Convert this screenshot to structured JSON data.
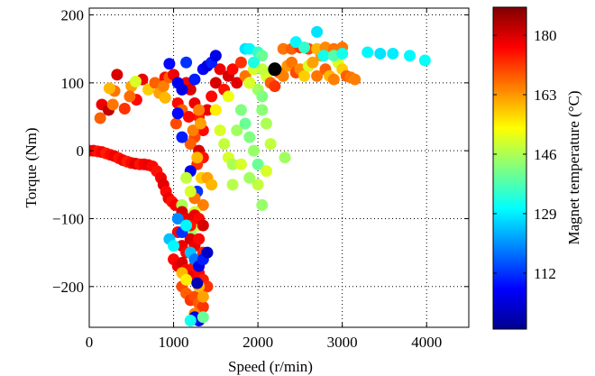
{
  "chart_data": {
    "type": "scatter",
    "xlabel": "Speed (r/min)",
    "ylabel": "Torque (Nm)",
    "xlim": [
      0,
      4500
    ],
    "ylim": [
      -260,
      210
    ],
    "xticks": [
      0,
      1000,
      2000,
      3000,
      4000
    ],
    "yticks": [
      -200,
      -100,
      0,
      100,
      200
    ],
    "grid": "dotted",
    "colorbar": {
      "label": "Magnet temperature (°C)",
      "range": [
        96,
        188
      ],
      "ticks": [
        112,
        129,
        146,
        163,
        180
      ],
      "colormap": "jet",
      "colors": [
        "#00008f",
        "#0000ff",
        "#0080ff",
        "#00ffff",
        "#80ff80",
        "#ffff00",
        "#ff8000",
        "#ff0000",
        "#800000"
      ]
    },
    "highlight_point": {
      "x": 2200,
      "y": 120,
      "color": "#000000"
    },
    "series": [
      {
        "points": [
          [
            0,
            0,
            176
          ],
          [
            50,
            0,
            178
          ],
          [
            100,
            -1,
            175
          ],
          [
            150,
            -2,
            177
          ],
          [
            200,
            -4,
            174
          ],
          [
            250,
            -6,
            176
          ],
          [
            300,
            -8,
            178
          ],
          [
            350,
            -11,
            175
          ],
          [
            400,
            -14,
            177
          ],
          [
            450,
            -16,
            174
          ],
          [
            500,
            -18,
            176
          ],
          [
            550,
            -19,
            179
          ],
          [
            600,
            -20,
            175
          ],
          [
            650,
            -20,
            177
          ],
          [
            700,
            -21,
            178
          ],
          [
            750,
            -23,
            176
          ],
          [
            800,
            -30,
            175
          ],
          [
            850,
            -40,
            177
          ],
          [
            880,
            -50,
            179
          ],
          [
            910,
            -60,
            176
          ],
          [
            940,
            -70,
            178
          ],
          [
            980,
            -75,
            175
          ],
          [
            1020,
            -80,
            177
          ],
          [
            330,
            112,
            180
          ],
          [
            300,
            88,
            166
          ],
          [
            240,
            92,
            160
          ],
          [
            150,
            68,
            178
          ],
          [
            130,
            48,
            168
          ],
          [
            230,
            60,
            182
          ],
          [
            280,
            68,
            166
          ],
          [
            420,
            62,
            172
          ],
          [
            500,
            95,
            162
          ],
          [
            560,
            75,
            176
          ],
          [
            630,
            105,
            178
          ],
          [
            700,
            90,
            158
          ],
          [
            780,
            100,
            168
          ],
          [
            830,
            85,
            162
          ],
          [
            900,
            108,
            176
          ],
          [
            550,
            102,
            150
          ],
          [
            480,
            80,
            167
          ],
          [
            880,
            95,
            165
          ],
          [
            950,
            108,
            168
          ],
          [
            1000,
            112,
            178
          ],
          [
            1050,
            70,
            176
          ],
          [
            900,
            78,
            160
          ],
          [
            1030,
            40,
            170
          ],
          [
            1100,
            60,
            168
          ],
          [
            1150,
            100,
            177
          ],
          [
            1200,
            90,
            180
          ],
          [
            1250,
            70,
            178
          ],
          [
            1300,
            50,
            174
          ],
          [
            1350,
            30,
            176
          ],
          [
            1250,
            20,
            170
          ],
          [
            1200,
            10,
            168
          ],
          [
            1300,
            0,
            180
          ],
          [
            1350,
            -10,
            175
          ],
          [
            1280,
            -20,
            172
          ],
          [
            1230,
            30,
            165
          ],
          [
            1180,
            50,
            176
          ],
          [
            1400,
            60,
            178
          ],
          [
            1450,
            80,
            176
          ],
          [
            1500,
            100,
            180
          ],
          [
            1550,
            120,
            178
          ],
          [
            1600,
            90,
            175
          ],
          [
            1650,
            110,
            180
          ],
          [
            1700,
            120,
            176
          ],
          [
            1750,
            100,
            179
          ],
          [
            1800,
            130,
            172
          ],
          [
            1850,
            110,
            166
          ],
          [
            1900,
            100,
            160
          ],
          [
            1950,
            120,
            150
          ],
          [
            2000,
            90,
            145
          ],
          [
            2050,
            80,
            142
          ],
          [
            2100,
            110,
            150
          ],
          [
            2150,
            100,
            168
          ],
          [
            2200,
            95,
            172
          ],
          [
            2250,
            115,
            168
          ],
          [
            2300,
            110,
            165
          ],
          [
            2350,
            125,
            163
          ],
          [
            2400,
            130,
            166
          ],
          [
            2450,
            115,
            170
          ],
          [
            2500,
            120,
            164
          ],
          [
            2550,
            110,
            158
          ],
          [
            2600,
            125,
            150
          ],
          [
            2650,
            130,
            162
          ],
          [
            2700,
            110,
            166
          ],
          [
            2750,
            140,
            163
          ],
          [
            2800,
            120,
            168
          ],
          [
            2850,
            110,
            160
          ],
          [
            2900,
            105,
            165
          ],
          [
            2950,
            130,
            150
          ],
          [
            3000,
            120,
            158
          ],
          [
            3050,
            110,
            168
          ],
          [
            3100,
            108,
            166
          ],
          [
            3150,
            105,
            165
          ],
          [
            2300,
            150,
            166
          ],
          [
            2400,
            150,
            168
          ],
          [
            2500,
            152,
            172
          ],
          [
            2600,
            150,
            170
          ],
          [
            2700,
            150,
            160
          ],
          [
            2800,
            152,
            164
          ],
          [
            2900,
            150,
            166
          ],
          [
            3000,
            152,
            166
          ],
          [
            2450,
            160,
            130
          ],
          [
            2550,
            152,
            135
          ],
          [
            2700,
            175,
            128
          ],
          [
            2780,
            140,
            132
          ],
          [
            2900,
            140,
            138
          ],
          [
            3000,
            143,
            132
          ],
          [
            3300,
            145,
            130
          ],
          [
            3450,
            143,
            128
          ],
          [
            3600,
            143,
            129
          ],
          [
            3800,
            140,
            130
          ],
          [
            3980,
            133,
            131
          ],
          [
            1850,
            150,
            128
          ],
          [
            1900,
            150,
            130
          ],
          [
            2000,
            145,
            135
          ],
          [
            2050,
            140,
            140
          ],
          [
            1950,
            130,
            133
          ],
          [
            1350,
            120,
            108
          ],
          [
            1400,
            125,
            105
          ],
          [
            1450,
            130,
            110
          ],
          [
            1500,
            140,
            105
          ],
          [
            1250,
            105,
            110
          ],
          [
            1100,
            90,
            105
          ],
          [
            1050,
            55,
            108
          ],
          [
            1100,
            20,
            110
          ],
          [
            1200,
            -30,
            106
          ],
          [
            1280,
            -60,
            112
          ],
          [
            1150,
            130,
            112
          ],
          [
            950,
            128,
            108
          ],
          [
            1050,
            100,
            106
          ],
          [
            1300,
            60,
            165
          ],
          [
            1320,
            40,
            162
          ],
          [
            1280,
            -10,
            160
          ],
          [
            1330,
            -40,
            158
          ],
          [
            1250,
            -70,
            166
          ],
          [
            1400,
            -40,
            162
          ],
          [
            1450,
            -50,
            160
          ],
          [
            1350,
            -80,
            165
          ],
          [
            1500,
            60,
            155
          ],
          [
            1550,
            30,
            150
          ],
          [
            1600,
            10,
            148
          ],
          [
            1650,
            -10,
            150
          ],
          [
            1700,
            -20,
            146
          ],
          [
            1750,
            30,
            145
          ],
          [
            1800,
            60,
            142
          ],
          [
            1850,
            40,
            140
          ],
          [
            1900,
            20,
            142
          ],
          [
            1950,
            0,
            144
          ],
          [
            2000,
            -20,
            140
          ],
          [
            2050,
            60,
            143
          ],
          [
            2100,
            40,
            146
          ],
          [
            2150,
            10,
            148
          ],
          [
            2100,
            -30,
            150
          ],
          [
            2000,
            -50,
            148
          ],
          [
            1900,
            -40,
            145
          ],
          [
            1800,
            -20,
            150
          ],
          [
            1700,
            -50,
            147
          ],
          [
            1650,
            80,
            152
          ],
          [
            2320,
            -10,
            145
          ],
          [
            2050,
            -80,
            144
          ],
          [
            1900,
            100,
            150
          ],
          [
            2050,
            120,
            148
          ],
          [
            1150,
            -40,
            148
          ],
          [
            1200,
            -60,
            150
          ],
          [
            1100,
            -80,
            146
          ],
          [
            1250,
            -90,
            150
          ],
          [
            1300,
            -110,
            148
          ],
          [
            1200,
            -120,
            145
          ],
          [
            1100,
            -90,
            180
          ],
          [
            1150,
            -100,
            178
          ],
          [
            1200,
            -110,
            175
          ],
          [
            1250,
            -95,
            178
          ],
          [
            1300,
            -100,
            176
          ],
          [
            1350,
            -110,
            180
          ],
          [
            1050,
            -120,
            176
          ],
          [
            1100,
            -140,
            178
          ],
          [
            1150,
            -150,
            176
          ],
          [
            1200,
            -130,
            180
          ],
          [
            1250,
            -140,
            178
          ],
          [
            1300,
            -130,
            176
          ],
          [
            1350,
            -150,
            174
          ],
          [
            1000,
            -160,
            176
          ],
          [
            1050,
            -170,
            178
          ],
          [
            1100,
            -165,
            180
          ],
          [
            1150,
            -175,
            176
          ],
          [
            1200,
            -185,
            178
          ],
          [
            1250,
            -170,
            175
          ],
          [
            1300,
            -180,
            176
          ],
          [
            1350,
            -190,
            174
          ],
          [
            1400,
            -200,
            172
          ],
          [
            1100,
            -200,
            170
          ],
          [
            1150,
            -210,
            168
          ],
          [
            1200,
            -220,
            172
          ],
          [
            1250,
            -215,
            170
          ],
          [
            1300,
            -225,
            168
          ],
          [
            1350,
            -230,
            172
          ],
          [
            1100,
            -180,
            160
          ],
          [
            1150,
            -190,
            155
          ],
          [
            1300,
            -200,
            160
          ],
          [
            1350,
            -215,
            162
          ],
          [
            1250,
            -240,
            165
          ],
          [
            950,
            -130,
            125
          ],
          [
            1000,
            -140,
            130
          ],
          [
            1050,
            -100,
            120
          ],
          [
            1100,
            -120,
            112
          ],
          [
            1150,
            -110,
            130
          ],
          [
            1200,
            -150,
            125
          ],
          [
            1250,
            -160,
            118
          ],
          [
            1300,
            -170,
            105
          ],
          [
            1350,
            -160,
            110
          ],
          [
            1400,
            -150,
            102
          ],
          [
            1250,
            -245,
            105
          ],
          [
            1300,
            -250,
            108
          ],
          [
            1350,
            -245,
            140
          ],
          [
            1200,
            -250,
            132
          ],
          [
            1280,
            -195,
            100
          ]
        ]
      }
    ]
  }
}
